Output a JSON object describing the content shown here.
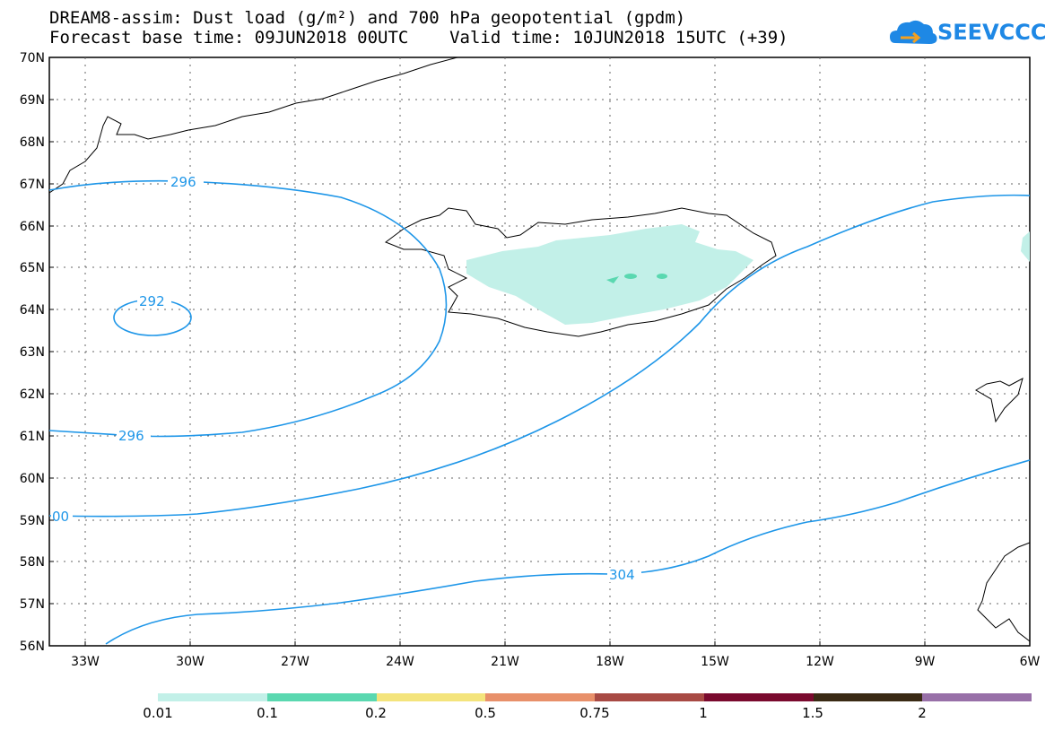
{
  "title": {
    "line1": "DREAM8-assim: Dust load (g/m²) and 700 hPa geopotential (gpdm)",
    "line2": "Forecast base time: 09JUN2018 00UTC    Valid time: 10JUN2018 15UTC (+39)"
  },
  "logo": {
    "text": "SEEVCCC",
    "icon": "cloud-icon",
    "color": "#1e88e5"
  },
  "map": {
    "lat_labels": [
      "70N",
      "69N",
      "68N",
      "67N",
      "66N",
      "65N",
      "64N",
      "63N",
      "62N",
      "61N",
      "60N",
      "59N",
      "58N",
      "57N",
      "56N"
    ],
    "lon_labels": [
      "33W",
      "30W",
      "27W",
      "24W",
      "21W",
      "18W",
      "15W",
      "12W",
      "9W",
      "6W"
    ],
    "lat_range": [
      56,
      70
    ],
    "lon_range": [
      -34,
      -6
    ],
    "grid": "dotted",
    "contour_labels": [
      "296",
      "292",
      "296",
      "00",
      "304"
    ],
    "contour_color": "#1e96e8"
  },
  "colorbar": {
    "labels": [
      "0.01",
      "0.1",
      "0.2",
      "0.5",
      "0.75",
      "1",
      "1.5",
      "2"
    ],
    "colors": [
      "#c2f0e8",
      "#5ad8b0",
      "#f4e47c",
      "#e8906a",
      "#a84a44",
      "#7a0a2e",
      "#3a2a14",
      "#9870a8"
    ]
  }
}
